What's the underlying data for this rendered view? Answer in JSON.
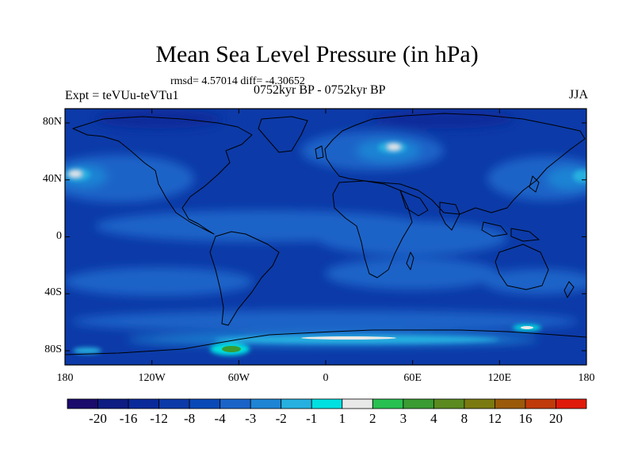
{
  "title": "Mean Sea Level Pressure (in hPa)",
  "stats": "rmsd= 4.57014 diff= -4.30652",
  "experiment": "Expt = teVUu-teVTu1",
  "period": "0752kyr BP - 0752kyr BP",
  "season": "JJA",
  "lat_labels": [
    "80N",
    "40N",
    "0",
    "40S",
    "80S"
  ],
  "lat_values": [
    80,
    40,
    0,
    -40,
    -80
  ],
  "lon_labels": [
    "180",
    "120W",
    "60W",
    "0",
    "60E",
    "120E",
    "180"
  ],
  "lon_values": [
    -180,
    -120,
    -60,
    0,
    60,
    120,
    180
  ],
  "colorbar": {
    "levels": [
      "-20",
      "-16",
      "-12",
      "-8",
      "-4",
      "-3",
      "-2",
      "-1",
      "1",
      "2",
      "3",
      "4",
      "8",
      "12",
      "16",
      "20"
    ],
    "colors": [
      "#1a0a6b",
      "#0d1d82",
      "#0a2a9a",
      "#0c3aa8",
      "#0a4ab8",
      "#1a64c8",
      "#1e84d4",
      "#26b0e0",
      "#00e0e0",
      "#e8e8e8",
      "#28c050",
      "#3a9c32",
      "#5a8a20",
      "#7a7a10",
      "#9a5a0a",
      "#c03a0a",
      "#e01a0a"
    ]
  }
}
